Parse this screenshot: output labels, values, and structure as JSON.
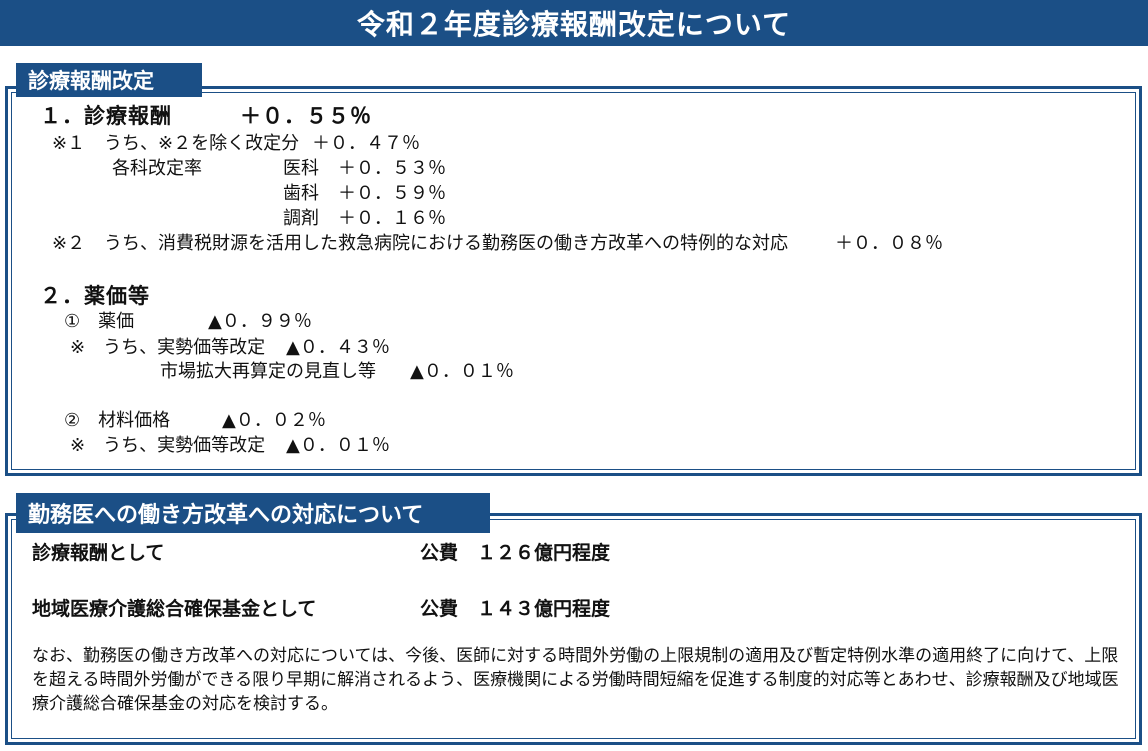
{
  "title": "令和２年度診療報酬改定について",
  "section1": {
    "tab": "診療報酬改定",
    "item1_label": "１．診療報酬",
    "item1_value": "＋０．５５％",
    "note1_prefix": "※１",
    "note1_text": "うち、※２を除く改定分",
    "note1_value": "＋０．４７％",
    "rates_label": "各科改定率",
    "rates": [
      {
        "dept": "医科",
        "value": "＋０．５３％"
      },
      {
        "dept": "歯科",
        "value": "＋０．５９％"
      },
      {
        "dept": "調剤",
        "value": "＋０．１６％"
      }
    ],
    "note2_prefix": "※２",
    "note2_text": "うち、消費税財源を活用した救急病院における勤務医の働き方改革への特例的な対応",
    "note2_value": "＋０．０８％",
    "item2_label": "２．薬価等",
    "drug_label": "①　薬価",
    "drug_value": "▲０．９９％",
    "drug_note_text": "※　うち、実勢価等改定",
    "drug_note_value": "▲０．４３％",
    "drug_note2_text": "市場拡大再算定の見直し等",
    "drug_note2_value": "▲０．０１％",
    "material_label": "②　材料価格",
    "material_value": "▲０．０２％",
    "material_note_text": "※　うち、実勢価等改定",
    "material_note_value": "▲０．０１％"
  },
  "section2": {
    "tab": "勤務医への働き方改革への対応について",
    "row1_label": "診療報酬として",
    "row1_value": "公費　１２６億円程度",
    "row2_label": "地域医療介護総合確保基金として",
    "row2_value": "公費　１４３億円程度",
    "paragraph": "なお、勤務医の働き方改革への対応については、今後、医師に対する時間外労働の上限規制の適用及び暫定特例水準の適用終了に向けて、上限を超える時間外労働ができる限り早期に解消されるよう、医療機関による労働時間短縮を促進する制度的対応等とあわせ、診療報酬及び地域医療介護総合確保基金の対応を検討する。"
  },
  "colors": {
    "accent": "#1b4f86",
    "background": "#ffffff"
  }
}
